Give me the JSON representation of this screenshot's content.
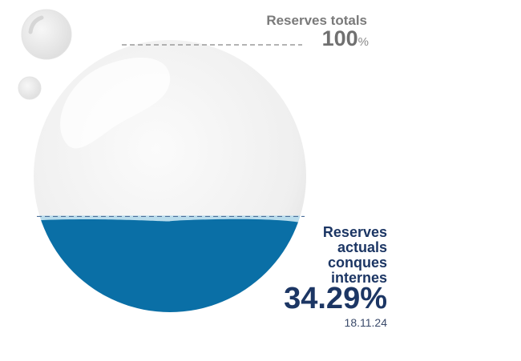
{
  "chart_data": {
    "type": "gauge",
    "title": "",
    "total": {
      "label": "Reserves totals",
      "value": "100",
      "unit": "%"
    },
    "current": {
      "label_lines": [
        "Reserves",
        "actuals",
        "conques",
        "internes"
      ],
      "value": 34.29,
      "value_text": "34.29%",
      "date": "18.11.24"
    },
    "colors": {
      "water": "#0a6fa6",
      "water_surface": "#b9dcec",
      "bubble": "#f1f1f1",
      "text_current": "#1c3664",
      "text_total": "#7a7a7a",
      "guide_line": "#9a9a9a"
    }
  }
}
